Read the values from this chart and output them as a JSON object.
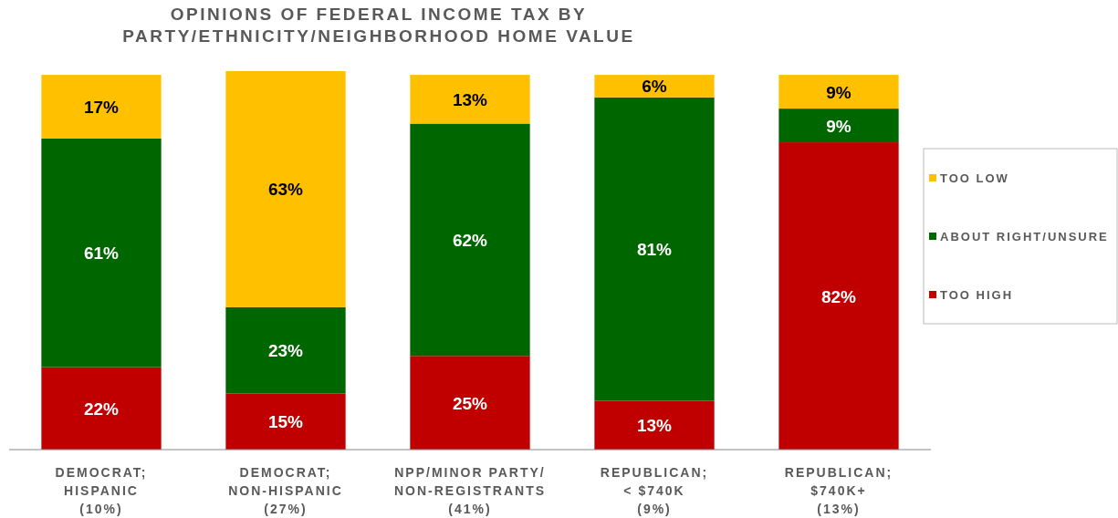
{
  "chart_data": {
    "type": "bar",
    "stacked": true,
    "title": "OPINIONS OF FEDERAL INCOME TAX BY\nPARTY/ETHNICITY/NEIGHBORHOOD HOME VALUE",
    "categories": [
      "DEMOCRAT;\nHISPANIC\n(10%)",
      "DEMOCRAT;\nNON-HISPANIC\n(27%)",
      "NPP/MINOR PARTY/\nNON-REGISTRANTS\n(41%)",
      "REPUBLICAN;\n< $740K\n(9%)",
      "REPUBLICAN;\n$740K+\n(13%)"
    ],
    "series": [
      {
        "name": "TOO HIGH",
        "color": "#c00000",
        "values": [
          22,
          15,
          25,
          13,
          82
        ],
        "value_labels": [
          "22%",
          "15%",
          "25%",
          "13%",
          "82%"
        ]
      },
      {
        "name": "ABOUT RIGHT/UNSURE",
        "color": "#006600",
        "values": [
          61,
          23,
          62,
          81,
          9
        ],
        "value_labels": [
          "61%",
          "23%",
          "62%",
          "81%",
          "9%"
        ]
      },
      {
        "name": "TOO LOW",
        "color": "#ffc000",
        "values": [
          17,
          63,
          13,
          6,
          9
        ],
        "value_labels": [
          "17%",
          "63%",
          "13%",
          "6%",
          "9%"
        ]
      }
    ],
    "legend": "right"
  }
}
